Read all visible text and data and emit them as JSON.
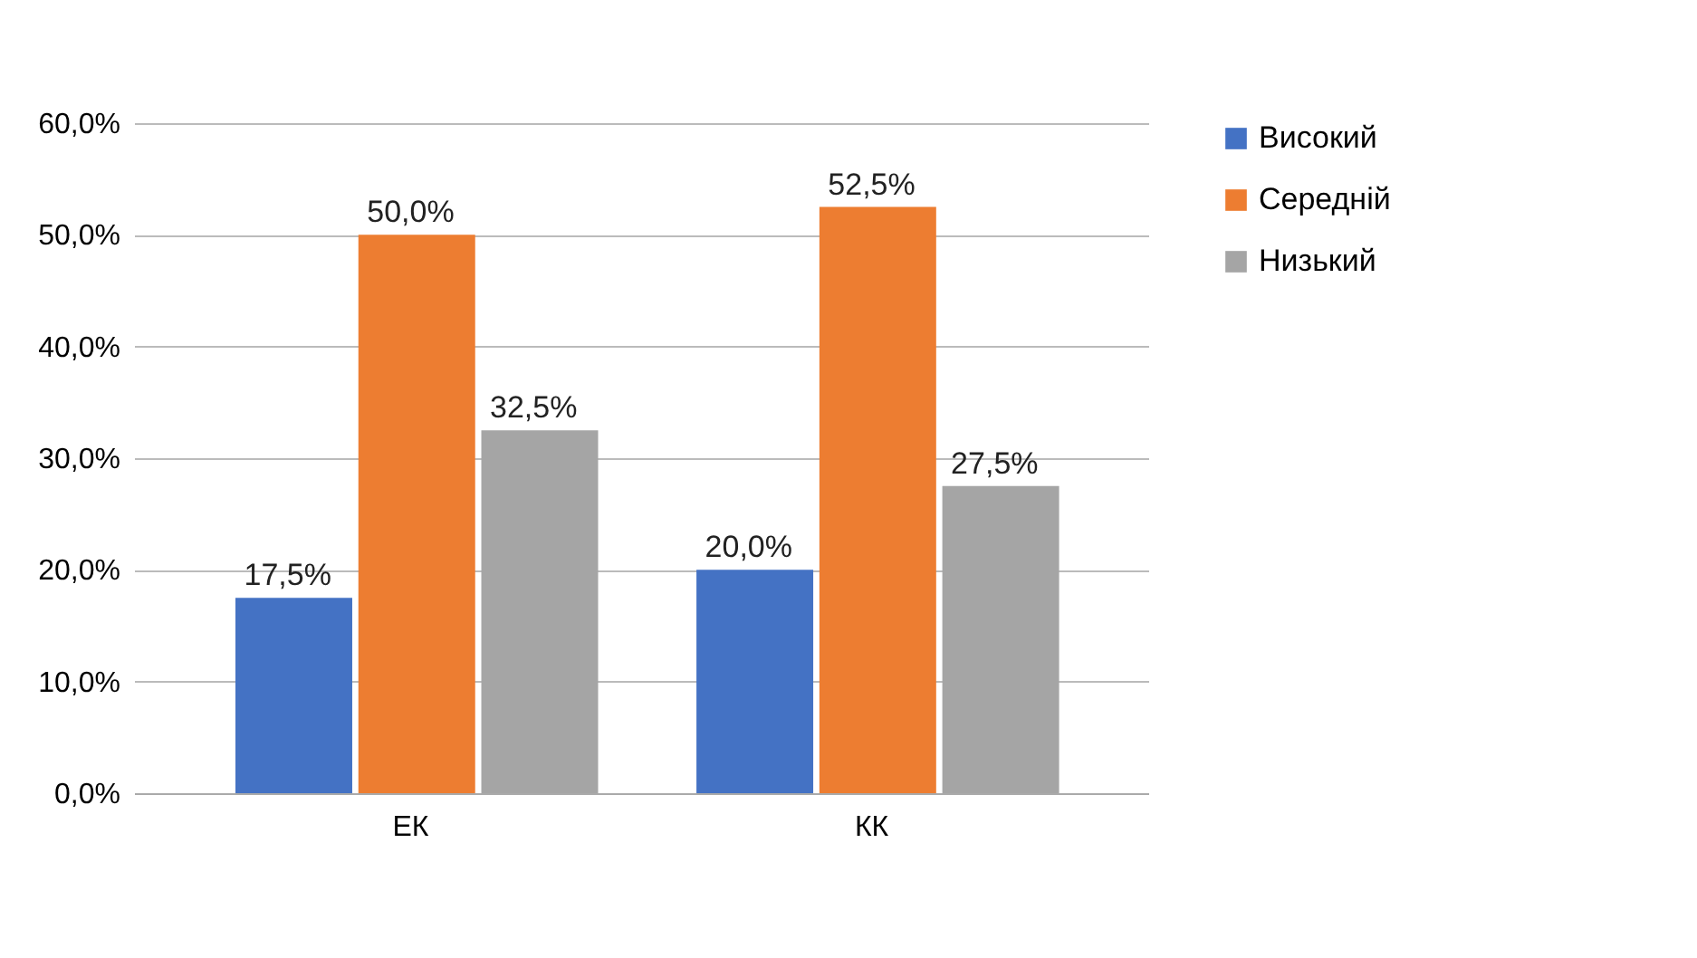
{
  "chart_data": {
    "type": "bar",
    "categories": [
      "ЕК",
      "КК"
    ],
    "series": [
      {
        "name": "Високий",
        "color": "#4472c4",
        "values": [
          17.5,
          20.0
        ],
        "value_labels": [
          "17,5%",
          "20,0%"
        ]
      },
      {
        "name": "Середній",
        "color": "#ed7d31",
        "values": [
          50.0,
          52.5
        ],
        "value_labels": [
          "50,0%",
          "52,5%"
        ]
      },
      {
        "name": "Низький",
        "color": "#a5a5a5",
        "values": [
          32.5,
          27.5
        ],
        "value_labels": [
          "32,5%",
          "27,5%"
        ]
      }
    ],
    "ylim": [
      0,
      60
    ],
    "yticks": [
      {
        "value": 0,
        "label": "0,0%"
      },
      {
        "value": 10,
        "label": "10,0%"
      },
      {
        "value": 20,
        "label": "20,0%"
      },
      {
        "value": 30,
        "label": "30,0%"
      },
      {
        "value": 40,
        "label": "40,0%"
      },
      {
        "value": 50,
        "label": "50,0%"
      },
      {
        "value": 60,
        "label": "60,0%"
      }
    ],
    "grid": "y",
    "legend": "right"
  }
}
